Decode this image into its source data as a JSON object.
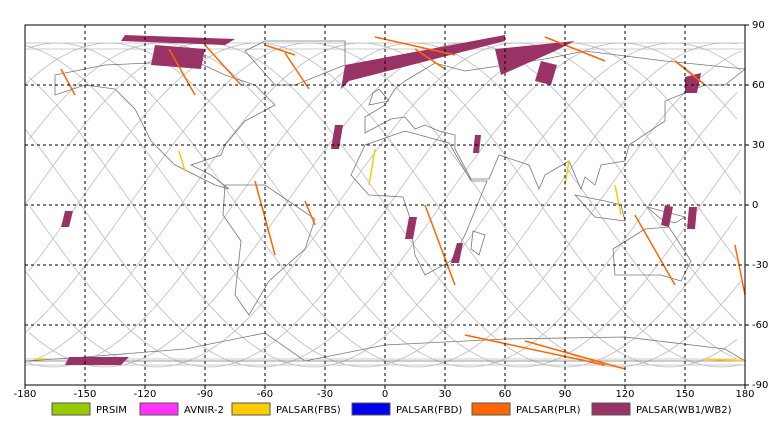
{
  "chart_data": {
    "type": "map",
    "xlim": [
      -180,
      180
    ],
    "ylim": [
      -90,
      90
    ],
    "xticks": [
      -180,
      -150,
      -120,
      -90,
      -60,
      -30,
      0,
      30,
      60,
      90,
      120,
      150,
      180
    ],
    "yticks": [
      -90,
      -60,
      -30,
      0,
      30,
      60,
      90
    ],
    "grid": true,
    "legend": [
      {
        "name": "PRSIM",
        "color": "#99cc00"
      },
      {
        "name": "AVNIR-2",
        "color": "#ff33ff"
      },
      {
        "name": "PALSAR(FBS)",
        "color": "#ffcc00"
      },
      {
        "name": "PALSAR(FBD)",
        "color": "#0000ee"
      },
      {
        "name": "PALSAR(PLR)",
        "color": "#ff6600"
      },
      {
        "name": "PALSAR(WB1/WB2)",
        "color": "#993366"
      }
    ]
  }
}
